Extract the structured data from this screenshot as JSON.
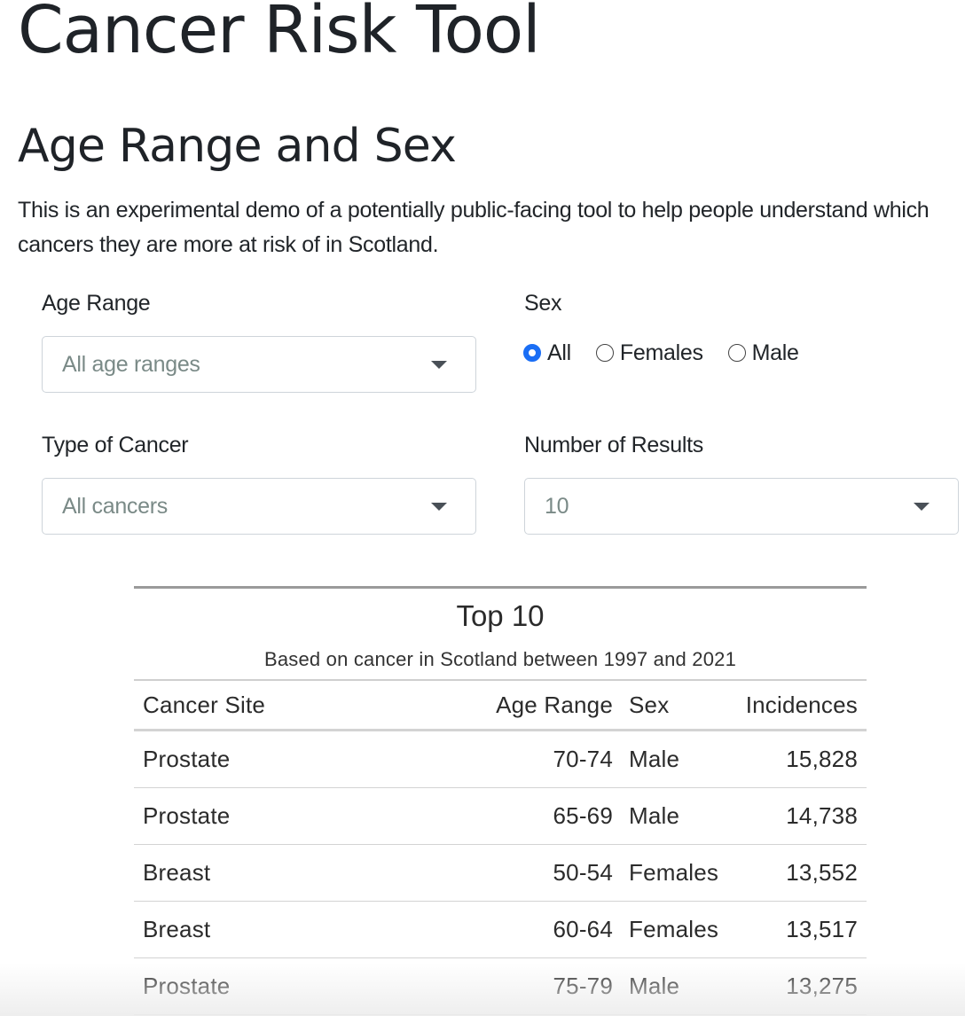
{
  "app_title": "Cancer Risk Tool",
  "section_title": "Age Range and Sex",
  "intro_text": "This is an experimental demo of a potentially public-facing tool to help people understand which cancers they are more at risk of in Scotland.",
  "filters": {
    "age_range": {
      "label": "Age Range",
      "value": "All age ranges"
    },
    "sex": {
      "label": "Sex",
      "options": [
        "All",
        "Females",
        "Male"
      ],
      "selected": "All"
    },
    "cancer_type": {
      "label": "Type of Cancer",
      "value": "All cancers"
    },
    "num_results": {
      "label": "Number of Results",
      "value": "10"
    }
  },
  "results_table": {
    "title": "Top 10",
    "subtitle": "Based on cancer in Scotland between 1997 and 2021",
    "headers": [
      "Cancer Site",
      "Age Range",
      "Sex",
      "Incidences"
    ],
    "rows": [
      [
        "Prostate",
        "70-74",
        "Male",
        "15,828"
      ],
      [
        "Prostate",
        "65-69",
        "Male",
        "14,738"
      ],
      [
        "Breast",
        "50-54",
        "Females",
        "13,552"
      ],
      [
        "Breast",
        "60-64",
        "Females",
        "13,517"
      ],
      [
        "Prostate",
        "75-79",
        "Male",
        "13,275"
      ]
    ]
  },
  "colors": {
    "radio_selected": "#1a6ef5",
    "placeholder_text": "#7a8a87",
    "input_border": "#ced4da"
  },
  "icons": {
    "dropdown": "chevron-down-icon",
    "radio": "radio-button-icon"
  }
}
